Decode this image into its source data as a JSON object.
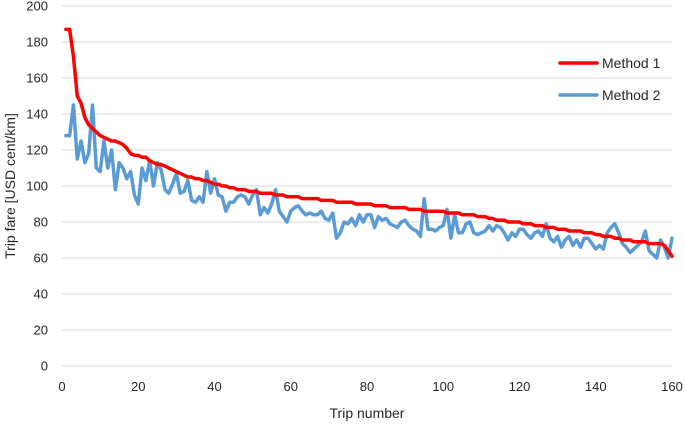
{
  "chart_data": {
    "type": "line",
    "xlabel": "Trip number",
    "ylabel": "Trip fare [USD cent/km]",
    "xlim": [
      0,
      160
    ],
    "ylim": [
      0,
      200
    ],
    "x_ticks": [
      0,
      20,
      40,
      60,
      80,
      100,
      120,
      140,
      160
    ],
    "y_ticks": [
      0,
      20,
      40,
      60,
      80,
      100,
      120,
      140,
      160,
      180,
      200
    ],
    "grid": "horizontal",
    "legend_position": "top-right",
    "series": [
      {
        "name": "Method 1",
        "color": "#ff0000",
        "x": [
          1,
          2,
          3,
          4,
          5,
          6,
          7,
          8,
          9,
          10,
          11,
          12,
          13,
          14,
          15,
          16,
          17,
          18,
          19,
          20,
          21,
          22,
          23,
          24,
          25,
          26,
          27,
          28,
          29,
          30,
          31,
          32,
          33,
          34,
          35,
          36,
          37,
          38,
          39,
          40,
          41,
          42,
          43,
          44,
          45,
          46,
          47,
          48,
          49,
          50,
          51,
          52,
          53,
          54,
          55,
          56,
          57,
          58,
          59,
          60,
          61,
          62,
          63,
          64,
          65,
          66,
          67,
          68,
          69,
          70,
          71,
          72,
          73,
          74,
          75,
          76,
          77,
          78,
          79,
          80,
          81,
          82,
          83,
          84,
          85,
          86,
          87,
          88,
          89,
          90,
          91,
          92,
          93,
          94,
          95,
          96,
          97,
          98,
          99,
          100,
          101,
          102,
          103,
          104,
          105,
          106,
          107,
          108,
          109,
          110,
          111,
          112,
          113,
          114,
          115,
          116,
          117,
          118,
          119,
          120,
          121,
          122,
          123,
          124,
          125,
          126,
          127,
          128,
          129,
          130,
          131,
          132,
          133,
          134,
          135,
          136,
          137,
          138,
          139,
          140,
          141,
          142,
          143,
          144,
          145,
          146,
          147,
          148,
          149,
          150,
          151,
          152,
          153,
          154,
          155,
          156,
          157,
          158,
          159,
          160
        ],
        "values": [
          187,
          187,
          172,
          150,
          146,
          138,
          134,
          132,
          130,
          128,
          127,
          126,
          125,
          125,
          124,
          123,
          121,
          118,
          117,
          117,
          116,
          116,
          114,
          113,
          112,
          112,
          111,
          110,
          109,
          108,
          107,
          106,
          105,
          105,
          104,
          104,
          103,
          103,
          102,
          101,
          101,
          100,
          100,
          99,
          99,
          98,
          98,
          98,
          97,
          97,
          97,
          96,
          96,
          96,
          96,
          95,
          95,
          95,
          94,
          94,
          94,
          94,
          93,
          93,
          93,
          93,
          93,
          92,
          92,
          92,
          92,
          91,
          91,
          91,
          91,
          91,
          90,
          90,
          90,
          90,
          90,
          89,
          89,
          89,
          89,
          88,
          88,
          88,
          88,
          88,
          87,
          87,
          87,
          87,
          86,
          86,
          86,
          86,
          86,
          86,
          85,
          85,
          85,
          85,
          84,
          84,
          84,
          84,
          83,
          83,
          83,
          82,
          82,
          81,
          81,
          81,
          80,
          80,
          80,
          80,
          79,
          79,
          79,
          78,
          78,
          78,
          77,
          77,
          77,
          76,
          76,
          76,
          75,
          75,
          75,
          75,
          74,
          74,
          74,
          73,
          73,
          72,
          72,
          72,
          71,
          71,
          70,
          70,
          70,
          69,
          69,
          69,
          69,
          68,
          68,
          68,
          68,
          67,
          64,
          61
        ]
      },
      {
        "name": "Method 2",
        "color": "#5b9bd5",
        "x": [
          1,
          2,
          3,
          4,
          5,
          6,
          7,
          8,
          9,
          10,
          11,
          12,
          13,
          14,
          15,
          16,
          17,
          18,
          19,
          20,
          21,
          22,
          23,
          24,
          25,
          26,
          27,
          28,
          29,
          30,
          31,
          32,
          33,
          34,
          35,
          36,
          37,
          38,
          39,
          40,
          41,
          42,
          43,
          44,
          45,
          46,
          47,
          48,
          49,
          50,
          51,
          52,
          53,
          54,
          55,
          56,
          57,
          58,
          59,
          60,
          61,
          62,
          63,
          64,
          65,
          66,
          67,
          68,
          69,
          70,
          71,
          72,
          73,
          74,
          75,
          76,
          77,
          78,
          79,
          80,
          81,
          82,
          83,
          84,
          85,
          86,
          87,
          88,
          89,
          90,
          91,
          92,
          93,
          94,
          95,
          96,
          97,
          98,
          99,
          100,
          101,
          102,
          103,
          104,
          105,
          106,
          107,
          108,
          109,
          110,
          111,
          112,
          113,
          114,
          115,
          116,
          117,
          118,
          119,
          120,
          121,
          122,
          123,
          124,
          125,
          126,
          127,
          128,
          129,
          130,
          131,
          132,
          133,
          134,
          135,
          136,
          137,
          138,
          139,
          140,
          141,
          142,
          143,
          144,
          145,
          146,
          147,
          148,
          149,
          150,
          151,
          152,
          153,
          154,
          155,
          156,
          157,
          158,
          159,
          160
        ],
        "values": [
          128,
          128,
          145,
          115,
          125,
          113,
          118,
          145,
          110,
          108,
          125,
          110,
          120,
          98,
          113,
          110,
          104,
          108,
          95,
          90,
          110,
          103,
          114,
          100,
          113,
          109,
          98,
          96,
          101,
          107,
          96,
          97,
          103,
          92,
          91,
          94,
          91,
          108,
          96,
          104,
          95,
          94,
          86,
          91,
          91,
          94,
          95,
          94,
          90,
          95,
          98,
          84,
          88,
          85,
          90,
          98,
          86,
          83,
          80,
          86,
          88,
          89,
          86,
          84,
          85,
          84,
          84,
          86,
          82,
          81,
          85,
          71,
          74,
          80,
          79,
          82,
          78,
          84,
          80,
          84,
          84,
          77,
          83,
          81,
          82,
          79,
          78,
          77,
          80,
          81,
          78,
          76,
          75,
          72,
          93,
          76,
          76,
          75,
          77,
          78,
          87,
          71,
          84,
          74,
          74,
          79,
          80,
          74,
          73,
          74,
          75,
          78,
          75,
          78,
          77,
          74,
          70,
          74,
          72,
          76,
          76,
          73,
          71,
          74,
          75,
          72,
          79,
          71,
          69,
          72,
          66,
          70,
          72,
          67,
          70,
          66,
          71,
          71,
          68,
          65,
          67,
          65,
          74,
          77,
          79,
          74,
          68,
          66,
          63,
          65,
          67,
          69,
          75,
          64,
          62,
          60,
          70,
          66,
          60,
          71
        ]
      }
    ]
  }
}
